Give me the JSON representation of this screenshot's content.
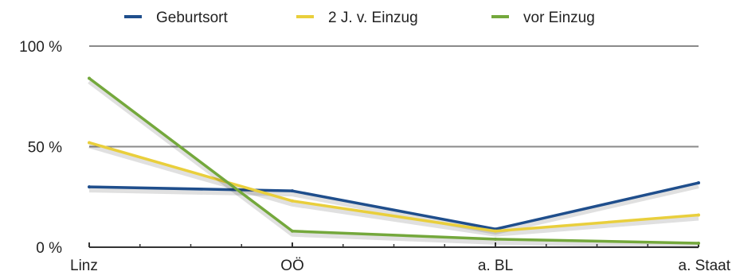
{
  "chart_data": {
    "type": "line",
    "title": "",
    "xlabel": "",
    "ylabel": "",
    "categories": [
      "Linz",
      "OÖ",
      "a. BL",
      "a. Staat"
    ],
    "y_ticks": [
      "0 %",
      "50 %",
      "100 %"
    ],
    "ylim": [
      0,
      100
    ],
    "grid": true,
    "legend_position": "top",
    "series": [
      {
        "name": "Geburtsort",
        "color": "#1f4e8c",
        "values": [
          30,
          28,
          9,
          32
        ]
      },
      {
        "name": "2 J. v. Einzug",
        "color": "#e9cf3c",
        "values": [
          52,
          23,
          8,
          16
        ]
      },
      {
        "name": "vor Einzug",
        "color": "#74a83c",
        "values": [
          84,
          8,
          4,
          2
        ]
      }
    ]
  }
}
